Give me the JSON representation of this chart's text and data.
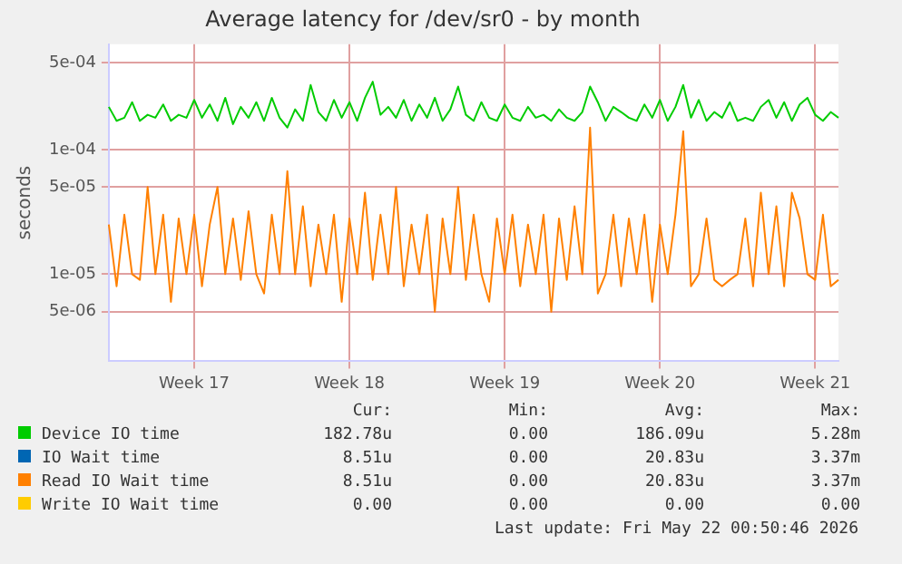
{
  "chart_data": {
    "type": "line",
    "title": "Average latency for /dev/sr0 - by month",
    "ylabel": "seconds",
    "log": "y",
    "grid": true,
    "legend": "bottom",
    "marker": "none",
    "line_style": "solid",
    "categories": [
      null,
      null,
      null,
      null,
      null,
      null,
      null,
      null,
      null,
      null,
      null,
      "Week 17",
      null,
      null,
      null,
      null,
      null,
      null,
      null,
      null,
      null,
      null,
      null,
      null,
      null,
      null,
      null,
      null,
      null,
      null,
      null,
      "Week 18",
      null,
      null,
      null,
      null,
      null,
      null,
      null,
      null,
      null,
      null,
      null,
      null,
      null,
      null,
      null,
      null,
      null,
      null,
      null,
      "Week 19",
      null,
      null,
      null,
      null,
      null,
      null,
      null,
      null,
      null,
      null,
      null,
      null,
      null,
      null,
      null,
      null,
      null,
      null,
      null,
      "Week 20",
      null,
      null,
      null,
      null,
      null,
      null,
      null,
      null,
      null,
      null,
      null,
      null,
      null,
      null,
      null,
      null,
      null,
      null,
      null,
      "Week 21",
      null,
      null,
      null
    ],
    "ylim": [
      2e-06,
      0.0007
    ],
    "yticks": [
      {
        "value": 5e-06,
        "label": "5e-06"
      },
      {
        "value": 1e-05,
        "label": "1e-05"
      },
      {
        "value": 5e-05,
        "label": "5e-05"
      },
      {
        "value": 0.0001,
        "label": "1e-04"
      },
      {
        "value": 0.0005,
        "label": "5e-04"
      }
    ],
    "series": [
      {
        "name": "Device IO time",
        "color": "#00cc00",
        "values": [
          0.00022,
          0.00017,
          0.00018,
          0.00024,
          0.00017,
          0.00019,
          0.00018,
          0.00023,
          0.00017,
          0.00019,
          0.00018,
          0.00025,
          0.00018,
          0.00023,
          0.00017,
          0.00026,
          0.00016,
          0.00022,
          0.00018,
          0.00024,
          0.00017,
          0.00026,
          0.00018,
          0.00015,
          0.00021,
          0.00017,
          0.00033,
          0.0002,
          0.00017,
          0.00025,
          0.00018,
          0.00024,
          0.00017,
          0.00026,
          0.00035,
          0.00019,
          0.00022,
          0.00018,
          0.00025,
          0.00017,
          0.00023,
          0.00018,
          0.00026,
          0.00017,
          0.00021,
          0.00032,
          0.00019,
          0.00017,
          0.00024,
          0.00018,
          0.00017,
          0.00023,
          0.00018,
          0.00017,
          0.00022,
          0.00018,
          0.00019,
          0.00017,
          0.00021,
          0.00018,
          0.00017,
          0.0002,
          0.00032,
          0.00024,
          0.00017,
          0.00022,
          0.0002,
          0.00018,
          0.00017,
          0.00023,
          0.00018,
          0.00025,
          0.00017,
          0.00022,
          0.00033,
          0.00018,
          0.00025,
          0.00017,
          0.0002,
          0.00018,
          0.00024,
          0.00017,
          0.00018,
          0.00017,
          0.00022,
          0.00025,
          0.00018,
          0.00024,
          0.00017,
          0.00023,
          0.00026,
          0.00019,
          0.00017,
          0.0002,
          0.00018
        ]
      },
      {
        "name": "IO Wait time",
        "color": "#0066b3",
        "values": [
          null,
          null,
          null,
          null,
          null,
          null,
          null,
          null,
          null,
          null,
          null,
          null,
          null,
          null,
          null,
          null,
          null,
          null,
          null,
          null,
          null,
          null,
          null,
          null,
          null,
          null,
          null,
          null,
          null,
          null,
          null,
          null,
          null,
          null,
          null,
          null,
          null,
          null,
          null,
          null,
          null,
          null,
          null,
          null,
          null,
          null,
          null,
          null,
          null,
          null,
          null,
          null,
          null,
          null,
          null,
          null,
          null,
          null,
          null,
          null,
          null,
          null,
          null,
          null,
          null,
          null,
          null,
          null,
          null,
          null,
          null,
          null,
          null,
          null,
          null,
          null,
          null,
          null,
          null,
          null,
          null,
          null,
          null,
          null,
          null,
          null,
          null,
          null,
          null,
          null,
          null,
          null,
          null,
          null,
          null
        ]
      },
      {
        "name": "Read IO Wait time",
        "color": "#ff8000",
        "values": [
          2.5e-05,
          8e-06,
          3e-05,
          1e-05,
          9e-06,
          5e-05,
          1e-05,
          3e-05,
          6e-06,
          2.8e-05,
          1e-05,
          3e-05,
          8e-06,
          2.5e-05,
          5e-05,
          1e-05,
          2.8e-05,
          9e-06,
          3.2e-05,
          1e-05,
          7e-06,
          3e-05,
          1e-05,
          6.7e-05,
          1e-05,
          3.5e-05,
          8e-06,
          2.5e-05,
          1e-05,
          3e-05,
          6e-06,
          2.8e-05,
          1e-05,
          4.5e-05,
          9e-06,
          3e-05,
          1e-05,
          5e-05,
          8e-06,
          2.5e-05,
          1e-05,
          3e-05,
          5e-06,
          2.8e-05,
          1e-05,
          5e-05,
          9e-06,
          3e-05,
          1e-05,
          6e-06,
          2.8e-05,
          1e-05,
          3e-05,
          8e-06,
          2.5e-05,
          1e-05,
          3e-05,
          5e-06,
          2.8e-05,
          9e-06,
          3.5e-05,
          1e-05,
          0.00015,
          7e-06,
          1e-05,
          3e-05,
          8e-06,
          2.8e-05,
          1e-05,
          3e-05,
          6e-06,
          2.5e-05,
          1e-05,
          3e-05,
          0.00014,
          8e-06,
          1e-05,
          2.8e-05,
          9e-06,
          8e-06,
          9e-06,
          1e-05,
          2.8e-05,
          8e-06,
          4.5e-05,
          1e-05,
          3.5e-05,
          8e-06,
          4.5e-05,
          2.8e-05,
          1e-05,
          9e-06,
          3e-05,
          8e-06,
          9e-06
        ]
      },
      {
        "name": "Write IO Wait time",
        "color": "#ffcc00",
        "values": [
          null,
          null,
          null,
          null,
          null,
          null,
          null,
          null,
          null,
          null,
          null,
          null,
          null,
          null,
          null,
          null,
          null,
          null,
          null,
          null,
          null,
          null,
          null,
          null,
          null,
          null,
          null,
          null,
          null,
          null,
          null,
          null,
          null,
          null,
          null,
          null,
          null,
          null,
          null,
          null,
          null,
          null,
          null,
          null,
          null,
          null,
          null,
          null,
          null,
          null,
          null,
          null,
          null,
          null,
          null,
          null,
          null,
          null,
          null,
          null,
          null,
          null,
          null,
          null,
          null,
          null,
          null,
          null,
          null,
          null,
          null,
          null,
          null,
          null,
          null,
          null,
          null,
          null,
          null,
          null,
          null,
          null,
          null,
          null,
          null,
          null,
          null,
          null,
          null,
          null,
          null,
          null,
          null,
          null,
          null
        ]
      }
    ],
    "annotations": [
      "Cur:",
      "Min:",
      "Avg:",
      "Max:",
      "182.78u",
      "0.00",
      "186.09u",
      "5.28m",
      "8.51u",
      "0.00",
      "20.83u",
      "3.37m",
      "8.51u",
      "0.00",
      "20.83u",
      "3.37m",
      "0.00",
      "0.00",
      "0.00",
      "0.00",
      "Last update: Fri May 22 00:50:46 2026"
    ]
  }
}
